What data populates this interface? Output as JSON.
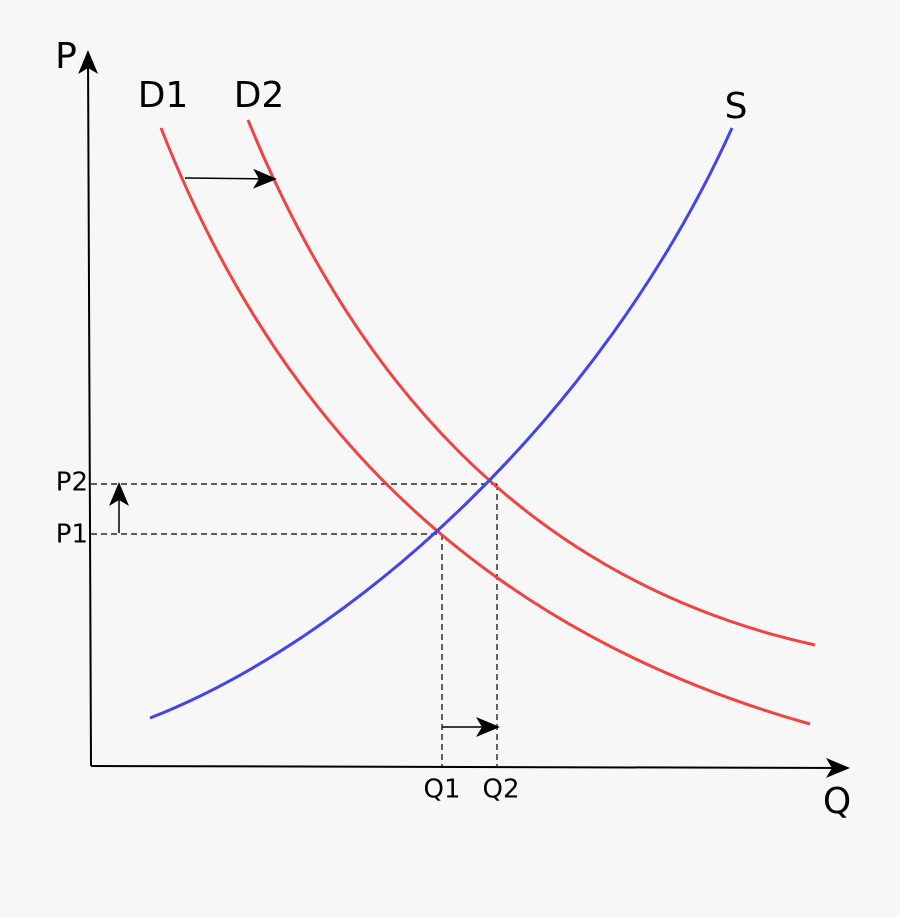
{
  "axes": {
    "y_label": "P",
    "x_label": "Q"
  },
  "curves": {
    "demand_1": "D1",
    "demand_2": "D2",
    "supply": "S"
  },
  "price_levels": [
    "P1",
    "P2"
  ],
  "quantity_levels": [
    "Q1",
    "Q2"
  ]
}
